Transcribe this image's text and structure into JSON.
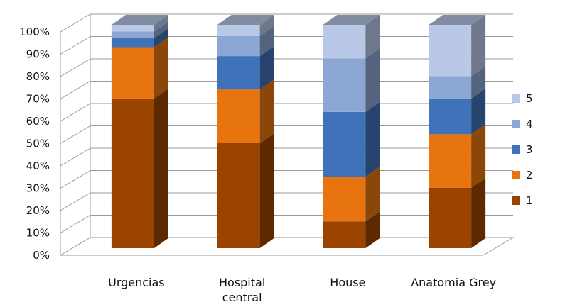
{
  "chart_data": {
    "type": "bar",
    "stacked": true,
    "percent": true,
    "three_d": true,
    "title": "",
    "xlabel": "",
    "ylabel": "",
    "ylim": [
      0,
      100
    ],
    "yticks": [
      "0%",
      "10%",
      "20%",
      "30%",
      "40%",
      "50%",
      "60%",
      "70%",
      "80%",
      "90%",
      "100%"
    ],
    "categories": [
      [
        "Urgencias"
      ],
      [
        "Hospital",
        "central"
      ],
      [
        "House"
      ],
      [
        "Anatomia Grey"
      ]
    ],
    "series": [
      {
        "name": "1",
        "color": "#9a4400",
        "values": [
          67,
          47,
          12,
          27
        ]
      },
      {
        "name": "2",
        "color": "#e8740f",
        "values": [
          23,
          24,
          20,
          24
        ]
      },
      {
        "name": "3",
        "color": "#3f72b8",
        "values": [
          4,
          15,
          29,
          16
        ]
      },
      {
        "name": "4",
        "color": "#8ca7d4",
        "values": [
          3,
          9,
          24,
          10
        ]
      },
      {
        "name": "5",
        "color": "#b9c8e6",
        "values": [
          3,
          5,
          15,
          23
        ]
      }
    ],
    "grid": true,
    "legend": "right"
  }
}
